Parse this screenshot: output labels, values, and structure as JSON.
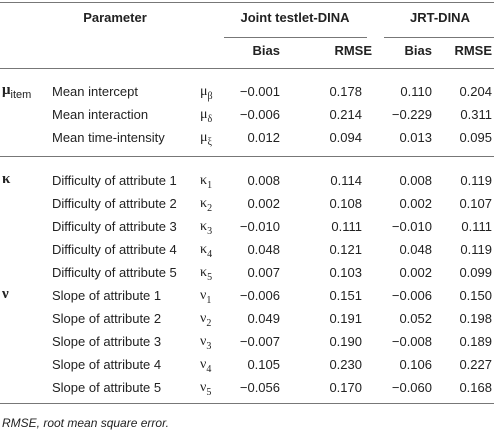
{
  "table": {
    "header": {
      "parameter": "Parameter",
      "groups": [
        {
          "title": "Joint testlet-DINA",
          "columns": [
            "Bias",
            "RMSE"
          ]
        },
        {
          "title": "JRT-DINA",
          "columns": [
            "Bias",
            "RMSE"
          ]
        }
      ]
    },
    "groups": [
      {
        "symbol": {
          "base": "μ",
          "sub": "item"
        },
        "rows": [
          {
            "name": "Mean intercept",
            "symbol": {
              "base": "μ",
              "sub": "β"
            },
            "values": [
              "−0.001",
              "0.178",
              "0.110",
              "0.204"
            ]
          },
          {
            "name": "Mean interaction",
            "symbol": {
              "base": "μ",
              "sub": "δ"
            },
            "values": [
              "−0.006",
              "0.214",
              "−0.229",
              "0.311"
            ]
          },
          {
            "name": "Mean time-intensity",
            "symbol": {
              "base": "μ",
              "sub": "ξ"
            },
            "values": [
              "0.012",
              "0.094",
              "0.013",
              "0.095"
            ]
          }
        ]
      },
      {
        "symbol": {
          "base": "κ",
          "sub": ""
        },
        "rows": [
          {
            "name": "Difficulty of attribute 1",
            "symbol": {
              "base": "κ",
              "sub": "1"
            },
            "values": [
              "0.008",
              "0.114",
              "0.008",
              "0.119"
            ]
          },
          {
            "name": "Difficulty of attribute 2",
            "symbol": {
              "base": "κ",
              "sub": "2"
            },
            "values": [
              "0.002",
              "0.108",
              "0.002",
              "0.107"
            ]
          },
          {
            "name": "Difficulty of attribute 3",
            "symbol": {
              "base": "κ",
              "sub": "3"
            },
            "values": [
              "−0.010",
              "0.111",
              "−0.010",
              "0.111"
            ]
          },
          {
            "name": "Difficulty of attribute 4",
            "symbol": {
              "base": "κ",
              "sub": "4"
            },
            "values": [
              "0.048",
              "0.121",
              "0.048",
              "0.119"
            ]
          },
          {
            "name": "Difficulty of attribute 5",
            "symbol": {
              "base": "κ",
              "sub": "5"
            },
            "values": [
              "0.007",
              "0.103",
              "0.002",
              "0.099"
            ]
          }
        ]
      },
      {
        "symbol": {
          "base": "ν",
          "sub": ""
        },
        "rows": [
          {
            "name": "Slope of attribute 1",
            "symbol": {
              "base": "ν",
              "sub": "1"
            },
            "values": [
              "−0.006",
              "0.151",
              "−0.006",
              "0.150"
            ]
          },
          {
            "name": "Slope of attribute 2",
            "symbol": {
              "base": "ν",
              "sub": "2"
            },
            "values": [
              "0.049",
              "0.191",
              "0.052",
              "0.198"
            ]
          },
          {
            "name": "Slope of attribute 3",
            "symbol": {
              "base": "ν",
              "sub": "3"
            },
            "values": [
              "−0.007",
              "0.190",
              "−0.008",
              "0.189"
            ]
          },
          {
            "name": "Slope of attribute 4",
            "symbol": {
              "base": "ν",
              "sub": "4"
            },
            "values": [
              "0.105",
              "0.230",
              "0.106",
              "0.227"
            ]
          },
          {
            "name": "Slope of attribute 5",
            "symbol": {
              "base": "ν",
              "sub": "5"
            },
            "values": [
              "−0.056",
              "0.170",
              "−0.060",
              "0.168"
            ]
          }
        ]
      }
    ],
    "footnote": "RMSE, root mean square error."
  }
}
